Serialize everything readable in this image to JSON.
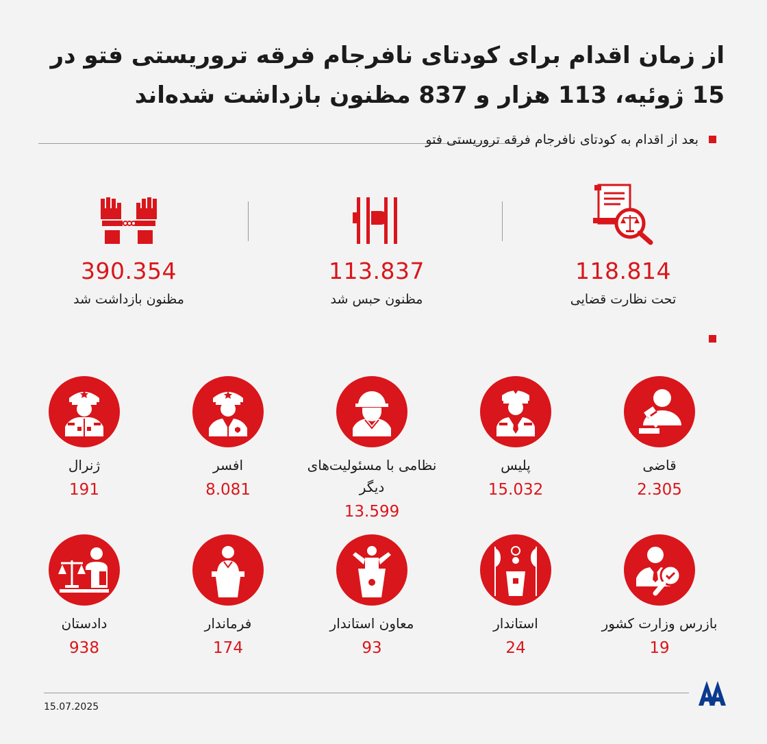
{
  "title": "از زمان اقدام برای کودتای نافرجام فرقه تروریستی فتو در 15 ژوئیه، 113 هزار و 837 مظنون بازداشت شده‌اند",
  "section1": {
    "subtitle": "بعد از اقدام به کودتای نافرجام فرقه تروریستی فتو",
    "stats": [
      {
        "icon": "judicial-control-icon",
        "value": "118.814",
        "label": "تحت نظارت قضایی"
      },
      {
        "icon": "prison-bars-icon",
        "value": "113.837",
        "label": "مظنون حبس شد"
      },
      {
        "icon": "handcuffed-hands-icon",
        "value": "390.354",
        "label": "مظنون بازداشت شد"
      }
    ]
  },
  "grid": [
    {
      "icon": "judge-gavel-icon",
      "label": "قاضی",
      "value": "2.305"
    },
    {
      "icon": "police-officer-icon",
      "label": "پلیس",
      "value": "15.032"
    },
    {
      "icon": "soldier-helmet-icon",
      "label": "نظامی با مسئولیت‌های دیگر",
      "value": "13.599"
    },
    {
      "icon": "military-officer-icon",
      "label": "افسر",
      "value": "8.081"
    },
    {
      "icon": "general-icon",
      "label": "ژنرال",
      "value": "191"
    },
    {
      "icon": "inspector-icon",
      "label": "بازرس وزارت کشور",
      "value": "19"
    },
    {
      "icon": "governor-icon",
      "label": "استاندار",
      "value": "24"
    },
    {
      "icon": "deputy-governor-icon",
      "label": "معاون استاندار",
      "value": "93"
    },
    {
      "icon": "district-governor-icon",
      "label": "فرماندار",
      "value": "174"
    },
    {
      "icon": "prosecutor-icon",
      "label": "دادستان",
      "value": "938"
    }
  ],
  "footer": {
    "date": "15.07.2025",
    "logo": "AA"
  },
  "colors": {
    "accent": "#d9161b",
    "background": "#f4f3f3"
  }
}
